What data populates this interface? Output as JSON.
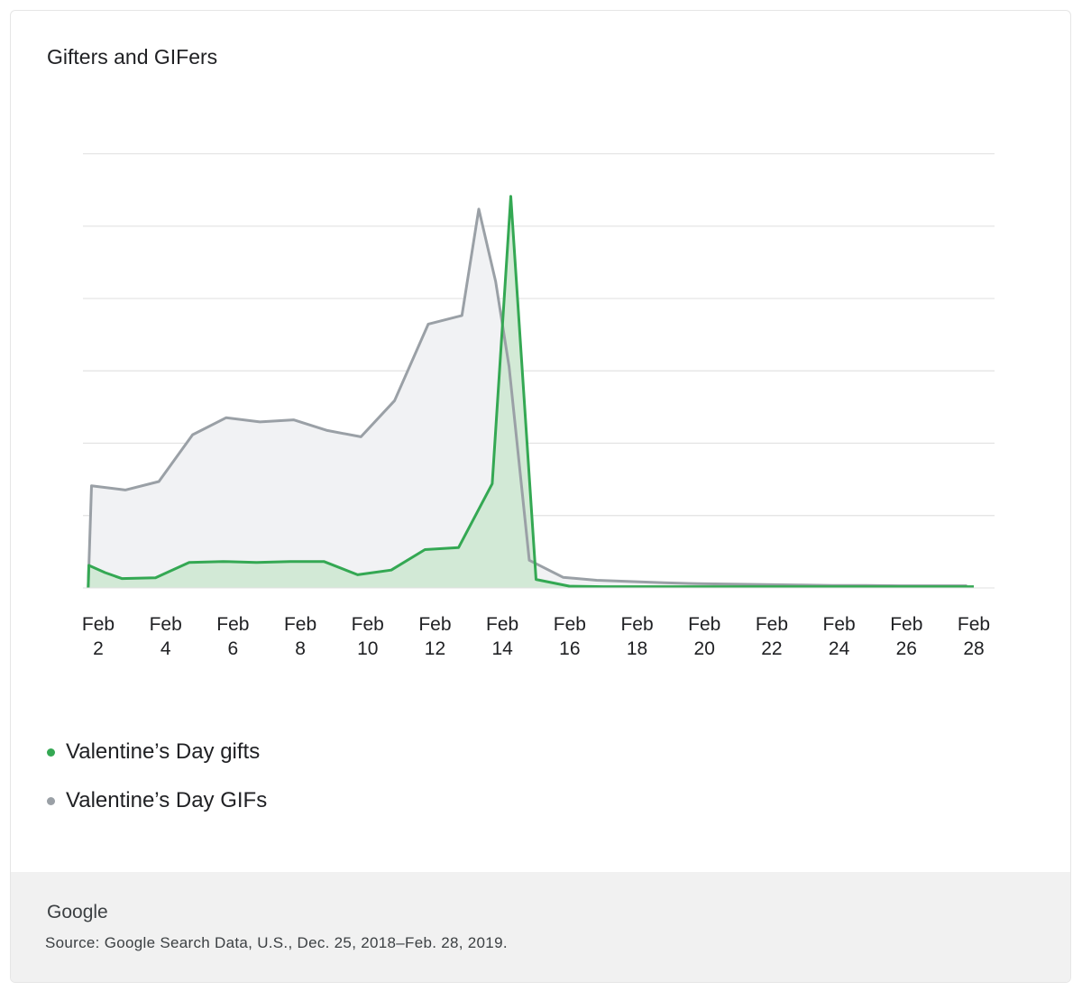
{
  "title": "Gifters and GIFers",
  "legend": [
    {
      "label": "Valentine’s Day gifts",
      "color": "#34a853"
    },
    {
      "label": "Valentine’s Day GIFs",
      "color": "#9aa0a6"
    }
  ],
  "footer": {
    "brand": "Google",
    "source": "Source: Google Search Data, U.S., Dec. 25, 2018–Feb. 28, 2019."
  },
  "chart_data": {
    "type": "area",
    "x_ticks": [
      {
        "line1": "Feb",
        "line2": "2",
        "day": 2
      },
      {
        "line1": "Feb",
        "line2": "4",
        "day": 4
      },
      {
        "line1": "Feb",
        "line2": "6",
        "day": 6
      },
      {
        "line1": "Feb",
        "line2": "8",
        "day": 8
      },
      {
        "line1": "Feb",
        "line2": "10",
        "day": 10
      },
      {
        "line1": "Feb",
        "line2": "12",
        "day": 12
      },
      {
        "line1": "Feb",
        "line2": "14",
        "day": 14
      },
      {
        "line1": "Feb",
        "line2": "16",
        "day": 16
      },
      {
        "line1": "Feb",
        "line2": "18",
        "day": 18
      },
      {
        "line1": "Feb",
        "line2": "20",
        "day": 20
      },
      {
        "line1": "Feb",
        "line2": "22",
        "day": 22
      },
      {
        "line1": "Feb",
        "line2": "24",
        "day": 24
      },
      {
        "line1": "Feb",
        "line2": "26",
        "day": 26
      },
      {
        "line1": "Feb",
        "line2": "28",
        "day": 28
      }
    ],
    "x_range": [
      1.7,
      28
    ],
    "ylim": [
      0,
      100
    ],
    "gridlines": [
      17,
      34,
      51,
      68,
      85,
      102
    ],
    "grid": true,
    "y_tick_labels": false,
    "series": [
      {
        "name": "Valentine’s Day GIFs",
        "color": "#9aa0a6",
        "fill": "#f1f2f4",
        "x": [
          1.7,
          1.8,
          2.8,
          3.8,
          4.8,
          5.8,
          6.8,
          7.8,
          8.8,
          9.8,
          10.8,
          11.8,
          12.8,
          13.3,
          13.8,
          14.2,
          14.8,
          15.8,
          16.8,
          17.8,
          18.8,
          19.8,
          20.8,
          21.8,
          22.8,
          23.8,
          24.8,
          25.8,
          26.8,
          27.8
        ],
        "y": [
          0,
          24,
          23,
          25,
          36,
          40,
          39,
          39.5,
          37,
          35.5,
          44,
          62,
          64,
          89,
          72,
          52,
          6.5,
          2.5,
          1.8,
          1.5,
          1.2,
          1.0,
          0.9,
          0.8,
          0.7,
          0.6,
          0.6,
          0.5,
          0.5,
          0.5
        ]
      },
      {
        "name": "Valentine’s Day gifts",
        "color": "#34a853",
        "fill": "#cfe8d3",
        "x": [
          1.7,
          1.72,
          2.2,
          2.7,
          3.7,
          4.7,
          5.7,
          6.7,
          7.7,
          8.7,
          9.7,
          10.7,
          11.7,
          12.7,
          13.7,
          14.25,
          15.0,
          16.0,
          17.0,
          18.0,
          19.0,
          20.0,
          21.0,
          22.0,
          23.0,
          24.0,
          25.0,
          26.0,
          27.0,
          28.0
        ],
        "y": [
          0,
          5.3,
          3.6,
          2.2,
          2.4,
          6.0,
          6.2,
          6.0,
          6.2,
          6.2,
          3.1,
          4.2,
          9.0,
          9.5,
          24.5,
          92,
          2.0,
          0.4,
          0.3,
          0.3,
          0.3,
          0.3,
          0.3,
          0.3,
          0.3,
          0.3,
          0.3,
          0.3,
          0.3,
          0.3
        ]
      }
    ]
  }
}
